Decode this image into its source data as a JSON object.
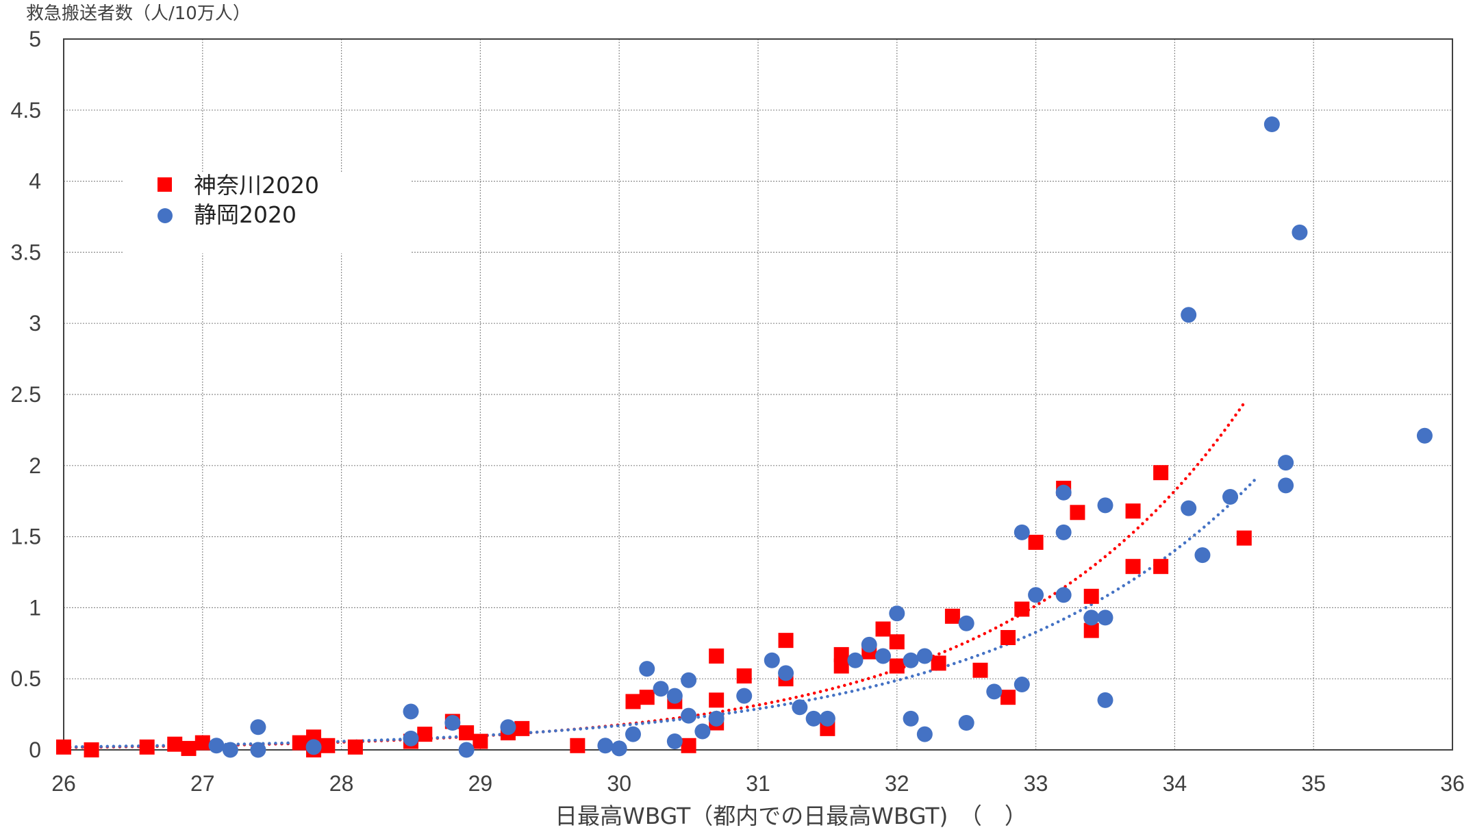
{
  "chart_data": {
    "type": "scatter",
    "title": "",
    "ylabel": "救急搬送者数（人/10万人）",
    "xlabel": "日最高WBGT（都内での日最高WBGT)　（　）",
    "xlim": [
      26,
      36
    ],
    "ylim": [
      0,
      5
    ],
    "xticks": [
      "26",
      "27",
      "28",
      "29",
      "30",
      "31",
      "32",
      "33",
      "34",
      "35",
      "36"
    ],
    "yticks": [
      "0",
      "0.5",
      "1",
      "1.5",
      "2",
      "2.5",
      "3",
      "3.5",
      "4",
      "4.5",
      "5"
    ],
    "grid": true,
    "legend_position": "top-left",
    "series": [
      {
        "name": "神奈川2020",
        "marker": "square",
        "color": "#ff0000",
        "trendline": {
          "type": "exponential",
          "x_range": [
            26,
            34.5
          ],
          "style": "dotted"
        },
        "points": [
          [
            26.0,
            0.02
          ],
          [
            26.2,
            0.0
          ],
          [
            26.6,
            0.02
          ],
          [
            26.8,
            0.04
          ],
          [
            26.9,
            0.01
          ],
          [
            27.0,
            0.05
          ],
          [
            27.7,
            0.05
          ],
          [
            27.8,
            0.09
          ],
          [
            27.8,
            0.0
          ],
          [
            27.9,
            0.03
          ],
          [
            28.1,
            0.02
          ],
          [
            28.5,
            0.06
          ],
          [
            28.6,
            0.11
          ],
          [
            28.8,
            0.2
          ],
          [
            28.9,
            0.12
          ],
          [
            29.0,
            0.06
          ],
          [
            29.2,
            0.12
          ],
          [
            29.3,
            0.15
          ],
          [
            29.7,
            0.03
          ],
          [
            30.1,
            0.34
          ],
          [
            30.2,
            0.37
          ],
          [
            30.4,
            0.34
          ],
          [
            30.5,
            0.03
          ],
          [
            30.7,
            0.66
          ],
          [
            30.7,
            0.35
          ],
          [
            30.7,
            0.19
          ],
          [
            30.9,
            0.52
          ],
          [
            31.2,
            0.77
          ],
          [
            31.2,
            0.5
          ],
          [
            31.5,
            0.15
          ],
          [
            31.6,
            0.67
          ],
          [
            31.6,
            0.59
          ],
          [
            31.8,
            0.69
          ],
          [
            31.9,
            0.85
          ],
          [
            32.0,
            0.76
          ],
          [
            32.0,
            0.59
          ],
          [
            32.3,
            0.61
          ],
          [
            32.4,
            0.94
          ],
          [
            32.6,
            0.56
          ],
          [
            32.8,
            0.79
          ],
          [
            32.8,
            0.37
          ],
          [
            32.9,
            0.99
          ],
          [
            33.0,
            1.46
          ],
          [
            33.2,
            1.84
          ],
          [
            33.3,
            1.67
          ],
          [
            33.4,
            1.08
          ],
          [
            33.4,
            0.84
          ],
          [
            33.7,
            1.68
          ],
          [
            33.7,
            1.29
          ],
          [
            33.9,
            1.95
          ],
          [
            33.9,
            1.29
          ],
          [
            34.5,
            1.49
          ]
        ]
      },
      {
        "name": "静岡2020",
        "marker": "circle",
        "color": "#4472c4",
        "trendline": {
          "type": "exponential",
          "x_range": [
            26,
            34.6
          ],
          "style": "dotted"
        },
        "points": [
          [
            27.1,
            0.03
          ],
          [
            27.2,
            0.0
          ],
          [
            27.4,
            0.16
          ],
          [
            27.4,
            0.0
          ],
          [
            27.8,
            0.02
          ],
          [
            28.5,
            0.27
          ],
          [
            28.5,
            0.08
          ],
          [
            28.8,
            0.19
          ],
          [
            28.9,
            0.0
          ],
          [
            29.2,
            0.16
          ],
          [
            29.9,
            0.03
          ],
          [
            30.0,
            0.01
          ],
          [
            30.1,
            0.11
          ],
          [
            30.2,
            0.57
          ],
          [
            30.3,
            0.43
          ],
          [
            30.4,
            0.38
          ],
          [
            30.4,
            0.06
          ],
          [
            30.5,
            0.49
          ],
          [
            30.5,
            0.24
          ],
          [
            30.6,
            0.13
          ],
          [
            30.7,
            0.22
          ],
          [
            30.9,
            0.38
          ],
          [
            31.1,
            0.63
          ],
          [
            31.2,
            0.54
          ],
          [
            31.3,
            0.3
          ],
          [
            31.4,
            0.22
          ],
          [
            31.5,
            0.22
          ],
          [
            31.7,
            0.63
          ],
          [
            31.8,
            0.74
          ],
          [
            31.9,
            0.66
          ],
          [
            32.0,
            0.96
          ],
          [
            32.1,
            0.63
          ],
          [
            32.1,
            0.22
          ],
          [
            32.2,
            0.66
          ],
          [
            32.2,
            0.11
          ],
          [
            32.5,
            0.89
          ],
          [
            32.5,
            0.19
          ],
          [
            32.7,
            0.41
          ],
          [
            32.9,
            1.53
          ],
          [
            32.9,
            0.46
          ],
          [
            33.0,
            1.09
          ],
          [
            33.2,
            1.81
          ],
          [
            33.2,
            1.53
          ],
          [
            33.2,
            1.09
          ],
          [
            33.4,
            0.93
          ],
          [
            33.5,
            1.72
          ],
          [
            33.5,
            0.93
          ],
          [
            33.5,
            0.35
          ],
          [
            34.1,
            3.06
          ],
          [
            34.1,
            1.7
          ],
          [
            34.2,
            1.37
          ],
          [
            34.4,
            1.78
          ],
          [
            34.7,
            4.4
          ],
          [
            34.8,
            2.02
          ],
          [
            34.8,
            1.86
          ],
          [
            34.9,
            3.64
          ],
          [
            35.8,
            2.21
          ]
        ]
      }
    ]
  }
}
